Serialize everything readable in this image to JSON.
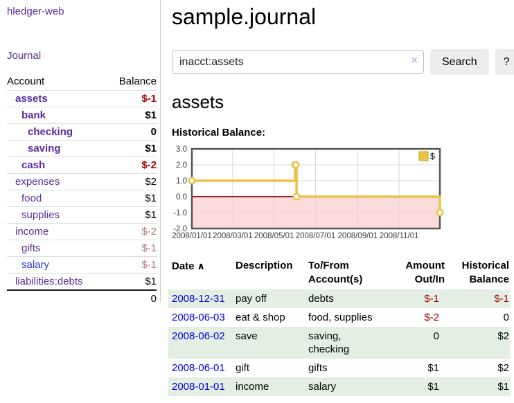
{
  "sidebar": {
    "brand": "hledger-web",
    "nav": {
      "journal_label": "Journal"
    },
    "accounts_table": {
      "headers": [
        "Account",
        "Balance"
      ],
      "rows": [
        {
          "name": "assets",
          "depth": 1,
          "bold": true,
          "balance": "$-1",
          "balance_class": "neg-strong"
        },
        {
          "name": "bank",
          "depth": 2,
          "bold": true,
          "balance": "$1",
          "balance_class": ""
        },
        {
          "name": "checking",
          "depth": 3,
          "bold": true,
          "balance": "0",
          "balance_class": ""
        },
        {
          "name": "saving",
          "depth": 3,
          "bold": true,
          "balance": "$1",
          "balance_class": ""
        },
        {
          "name": "cash",
          "depth": 2,
          "bold": true,
          "balance": "$-2",
          "balance_class": "neg-strong"
        },
        {
          "name": "expenses",
          "depth": 1,
          "bold": false,
          "balance": "$2",
          "balance_class": ""
        },
        {
          "name": "food",
          "depth": 2,
          "bold": false,
          "balance": "$1",
          "balance_class": ""
        },
        {
          "name": "supplies",
          "depth": 2,
          "bold": false,
          "balance": "$1",
          "balance_class": ""
        },
        {
          "name": "income",
          "depth": 1,
          "bold": false,
          "balance": "$-2",
          "balance_class": "neg-soft"
        },
        {
          "name": "gifts",
          "depth": 2,
          "bold": false,
          "balance": "$-1",
          "balance_class": "neg-soft"
        },
        {
          "name": "salary",
          "depth": 2,
          "bold": false,
          "balance": "$-1",
          "balance_class": "neg-soft",
          "link_class": "blue"
        },
        {
          "name": "liabilities:debts",
          "depth": 1,
          "bold": false,
          "balance": "$1",
          "balance_class": ""
        }
      ],
      "total": "0"
    }
  },
  "header": {
    "title": "sample.journal"
  },
  "search": {
    "query": "inacct:assets",
    "clear_icon": "×",
    "search_label": "Search",
    "help_label": "?"
  },
  "account_page": {
    "title": "assets",
    "chart_label": "Historical Balance:"
  },
  "chart_data": {
    "type": "line",
    "step": true,
    "series": [
      {
        "name": "$",
        "points": [
          [
            "2008-01-01",
            1.0
          ],
          [
            "2008-06-01",
            2.0
          ],
          [
            "2008-06-02",
            2.0
          ],
          [
            "2008-06-03",
            0.0
          ],
          [
            "2008-12-31",
            -1.0
          ]
        ]
      }
    ],
    "x_ticks": [
      "2008/01/01",
      "2008/03/01",
      "2008/05/01",
      "2008/07/01",
      "2008/09/01",
      "2008/11/01"
    ],
    "y_ticks": [
      "3.0",
      "2.0",
      "1.0",
      "0.0",
      "-1.0",
      "-2.0"
    ],
    "xlim": [
      "2008-01-01",
      "2008-12-31"
    ],
    "ylim": [
      -2.0,
      3.0
    ],
    "legend": {
      "label": "$",
      "position": "top-right"
    },
    "grid": true,
    "colors": {
      "series": "#E9C348",
      "marker_fill": "#ffffff",
      "negative_region": "#FBDBDB",
      "zero_line": "#8B0000",
      "grid": "#D8D8D8",
      "border": "#545454",
      "tick_text": "#3c3c3c"
    }
  },
  "register": {
    "headers": [
      "Date",
      "Description",
      "To/From Account(s)",
      "Amount Out/In",
      "Historical Balance"
    ],
    "sort_icon": "∧",
    "rows": [
      {
        "date": "2008-12-31",
        "description": "pay off",
        "accounts": "debts",
        "amount": "$-1",
        "amount_class": "neg-strong",
        "balance": "$-1",
        "balance_class": "neg-strong"
      },
      {
        "date": "2008-06-03",
        "description": "eat & shop",
        "accounts": "food, supplies",
        "amount": "$-2",
        "amount_class": "neg-strong",
        "balance": "0",
        "balance_class": ""
      },
      {
        "date": "2008-06-02",
        "description": "save",
        "accounts": "saving, checking",
        "amount": "0",
        "amount_class": "",
        "balance": "$2",
        "balance_class": ""
      },
      {
        "date": "2008-06-01",
        "description": "gift",
        "accounts": "gifts",
        "amount": "$1",
        "amount_class": "",
        "balance": "$2",
        "balance_class": ""
      },
      {
        "date": "2008-01-01",
        "description": "income",
        "accounts": "salary",
        "amount": "$1",
        "amount_class": "",
        "balance": "$1",
        "balance_class": ""
      }
    ]
  }
}
